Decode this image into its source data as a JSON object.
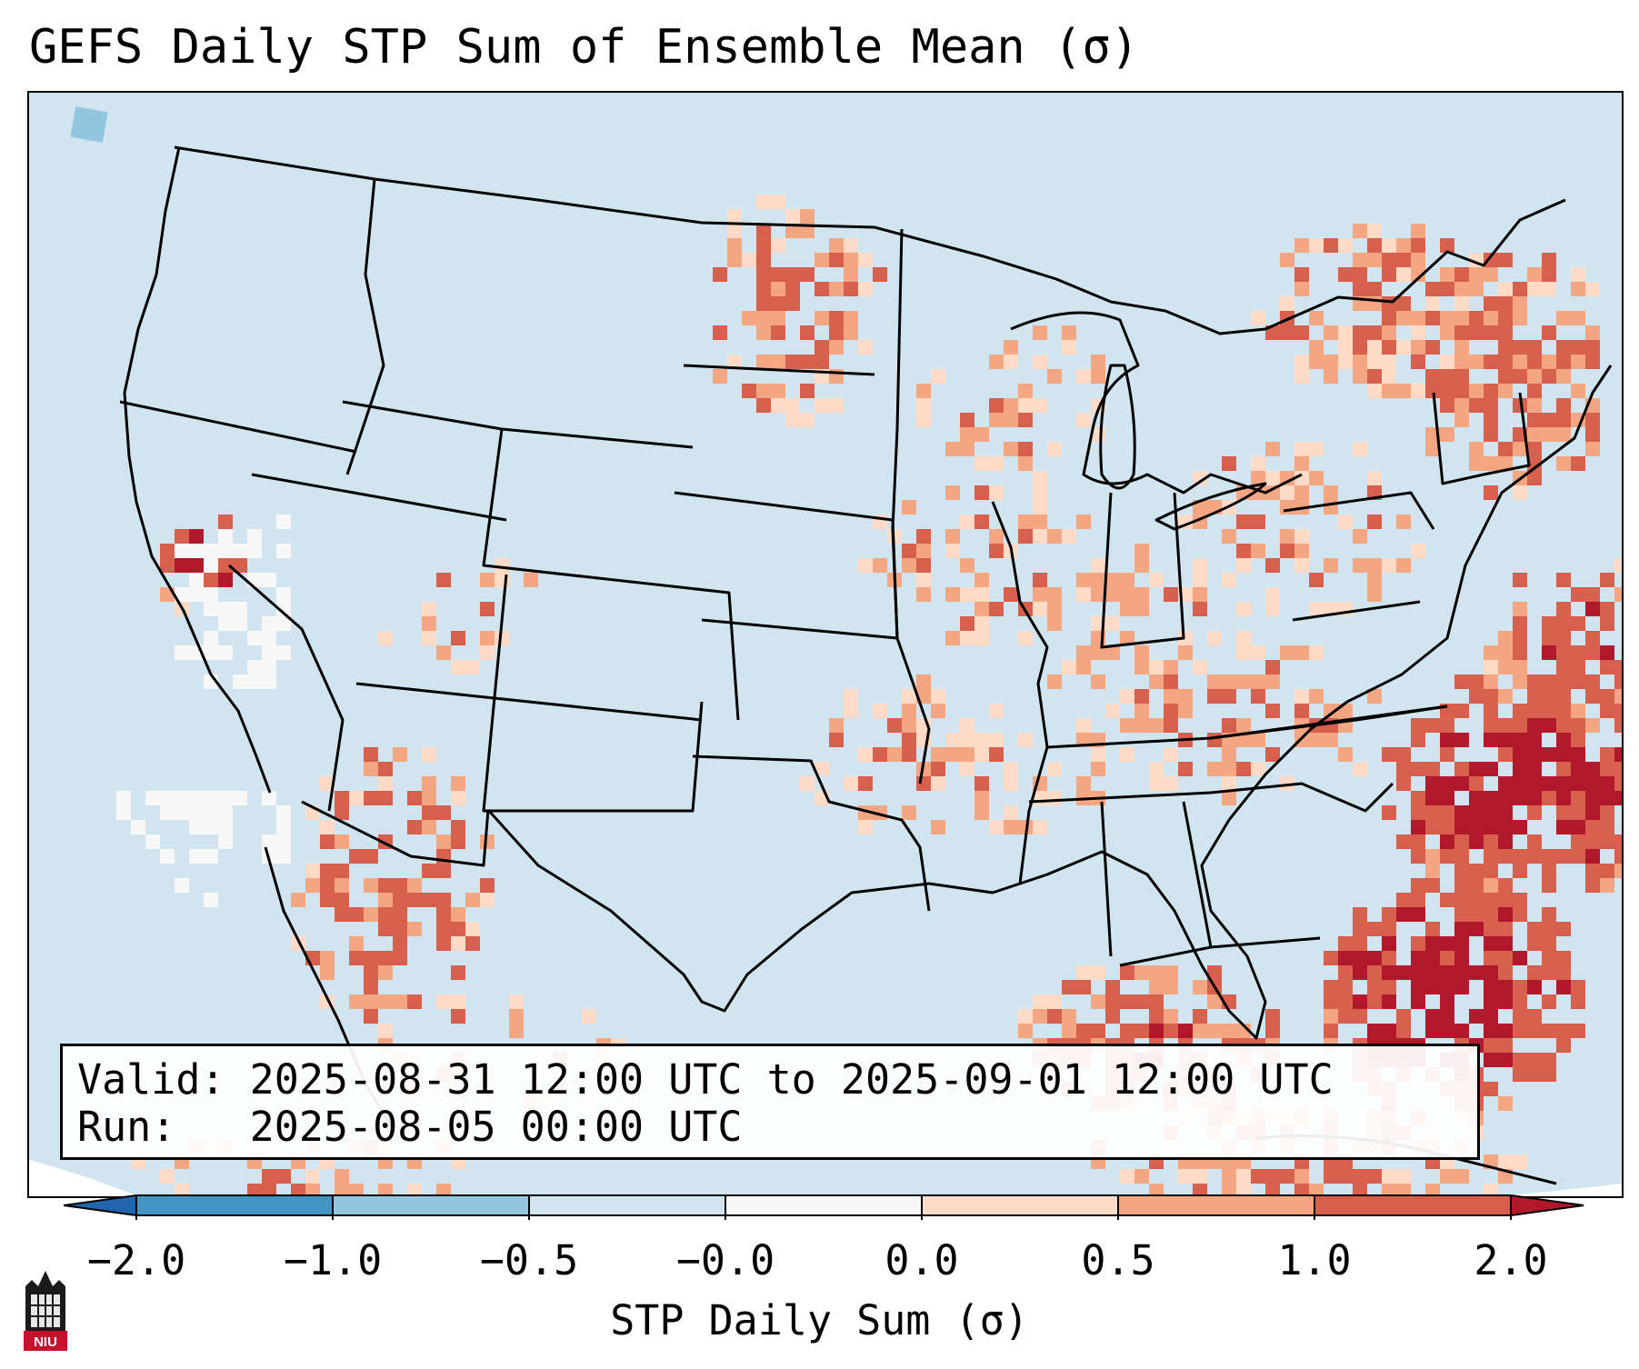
{
  "title": "GEFS Daily STP Sum of Ensemble Mean (σ)",
  "info": {
    "valid_line": "Valid: 2025-08-31 12:00 UTC to 2025-09-01 12:00 UTC",
    "run_line": "Run:   2025-08-05 00:00 UTC"
  },
  "colorbar": {
    "label": "STP Daily Sum (σ)",
    "tick_labels": [
      "−2.0",
      "−1.0",
      "−0.5",
      "−0.0",
      "0.0",
      "0.5",
      "1.0",
      "2.0"
    ],
    "bins": [
      {
        "from": -2.0,
        "to": -1.0,
        "color": "#4393c3"
      },
      {
        "from": -1.0,
        "to": -0.5,
        "color": "#92c5de"
      },
      {
        "from": -0.5,
        "to": -0.0,
        "color": "#d1e5f0"
      },
      {
        "from": -0.0,
        "to": 0.0,
        "color": "#f7f7f7"
      },
      {
        "from": 0.0,
        "to": 0.5,
        "color": "#fddbc7"
      },
      {
        "from": 0.5,
        "to": 1.0,
        "color": "#f4a582"
      },
      {
        "from": 1.0,
        "to": 2.0,
        "color": "#d6604d"
      }
    ],
    "under_color": "#2166ac",
    "over_color": "#b2182b"
  },
  "map": {
    "background_color": "#d1e5f0",
    "field_colors": {
      "light": "#fddbc7",
      "medium": "#f4a582",
      "strong": "#d6604d",
      "extreme": "#b2182b",
      "neutral": "#f7f7f7",
      "negative": "#92c5de"
    }
  },
  "logo": {
    "text": "NIU",
    "icon": "university-tower-icon"
  }
}
